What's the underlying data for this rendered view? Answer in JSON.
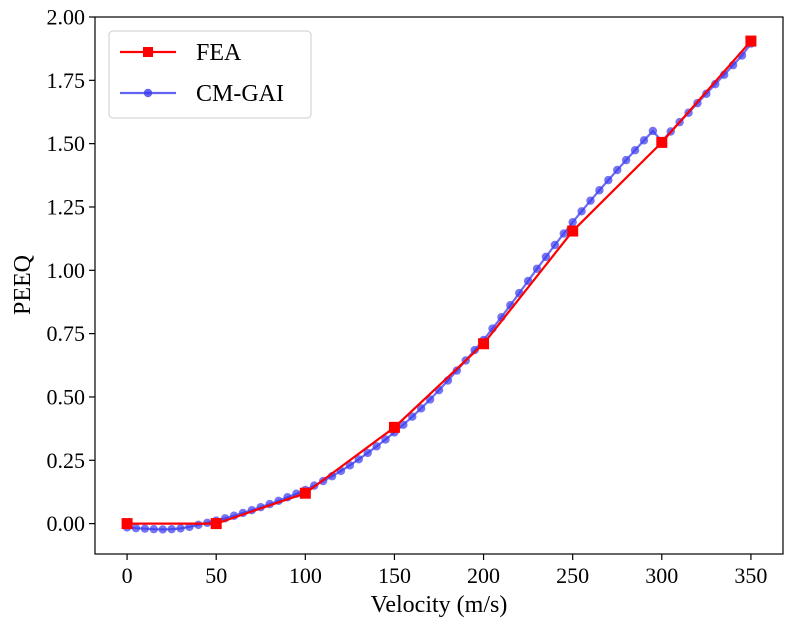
{
  "chart_data": {
    "type": "line",
    "xlabel": "Velocity (m/s)",
    "ylabel": "PEEQ",
    "xlim": [
      -18,
      368
    ],
    "ylim": [
      -0.12,
      2.0
    ],
    "xticks": [
      0,
      50,
      100,
      150,
      200,
      250,
      300,
      350
    ],
    "yticks": [
      0.0,
      0.25,
      0.5,
      0.75,
      1.0,
      1.25,
      1.5,
      1.75,
      2.0
    ],
    "xtick_labels": [
      "0",
      "50",
      "100",
      "150",
      "200",
      "250",
      "300",
      "350"
    ],
    "ytick_labels": [
      "0.00",
      "0.25",
      "0.50",
      "0.75",
      "1.00",
      "1.25",
      "1.50",
      "1.75",
      "2.00"
    ],
    "grid": false,
    "legend_position": "top-left",
    "series": [
      {
        "name": "FEA",
        "color": "#ff0000",
        "marker": "square",
        "x": [
          0,
          50,
          100,
          150,
          200,
          250,
          300,
          350
        ],
        "y": [
          0.0,
          0.0,
          0.12,
          0.38,
          0.71,
          1.155,
          1.505,
          1.905
        ]
      },
      {
        "name": "CM-GAI",
        "color": "#3b3bf0",
        "marker": "circle",
        "x": [
          0,
          5,
          10,
          15,
          20,
          25,
          30,
          35,
          40,
          45,
          50,
          55,
          60,
          65,
          70,
          75,
          80,
          85,
          90,
          95,
          100,
          105,
          110,
          115,
          120,
          125,
          130,
          135,
          140,
          145,
          150,
          155,
          160,
          165,
          170,
          175,
          180,
          185,
          190,
          195,
          200,
          205,
          210,
          215,
          220,
          225,
          230,
          235,
          240,
          245,
          250,
          255,
          260,
          265,
          270,
          275,
          280,
          285,
          290,
          295,
          300,
          305,
          310,
          315,
          320,
          325,
          330,
          335,
          340,
          345,
          350
        ],
        "y": [
          -0.015,
          -0.018,
          -0.02,
          -0.022,
          -0.023,
          -0.022,
          -0.019,
          -0.013,
          -0.005,
          0.003,
          0.012,
          0.021,
          0.031,
          0.042,
          0.053,
          0.065,
          0.077,
          0.09,
          0.104,
          0.118,
          0.133,
          0.15,
          0.168,
          0.187,
          0.208,
          0.23,
          0.254,
          0.279,
          0.305,
          0.332,
          0.36,
          0.39,
          0.422,
          0.455,
          0.49,
          0.527,
          0.565,
          0.604,
          0.644,
          0.685,
          0.725,
          0.77,
          0.815,
          0.862,
          0.91,
          0.958,
          1.006,
          1.053,
          1.1,
          1.145,
          1.19,
          1.233,
          1.275,
          1.316,
          1.356,
          1.396,
          1.435,
          1.474,
          1.513,
          1.55,
          1.51,
          1.548,
          1.585,
          1.622,
          1.66,
          1.697,
          1.735,
          1.772,
          1.81,
          1.848,
          1.895
        ]
      }
    ]
  }
}
